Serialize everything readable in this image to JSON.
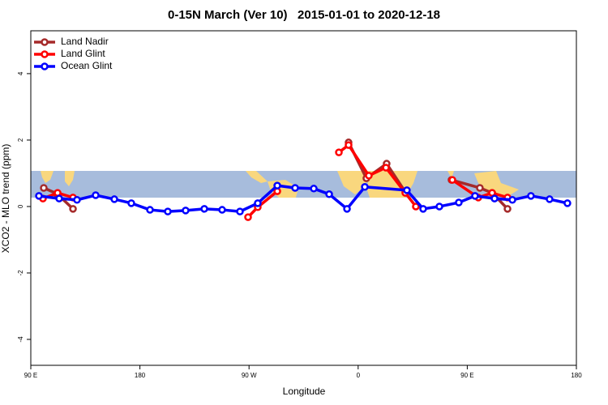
{
  "chart_data": {
    "type": "line",
    "title": "0-15N March (Ver 10)   2015-01-01 to 2020-12-18",
    "x_label": "Longitude",
    "y_label": "XCO2 - MLO trend (ppm)",
    "xlim": [
      90,
      540
    ],
    "xticks": [
      {
        "value": 90,
        "label": "90 E"
      },
      180,
      {
        "value": 270,
        "label": "90 W"
      },
      {
        "value": 360,
        "label": "0"
      },
      {
        "value": 450,
        "label": "90 E"
      },
      180
    ],
    "ylim": [
      -4.78,
      5.29
    ],
    "yticks": [
      -4,
      -2,
      0,
      2,
      4
    ],
    "legend": "top-left",
    "series": [
      {
        "name": "Land Nadir",
        "color": "#a52a2a",
        "x": [
          100.7,
          111.4,
          124.8,
          null,
          352.1,
          366.8,
          383.5,
          398.9,
          null,
          437.0,
          460.4,
          470.5,
          483.2
        ],
        "values": [
          0.56,
          0.39,
          -0.07,
          null,
          1.93,
          0.85,
          1.29,
          0.44,
          null,
          0.8,
          0.56,
          0.41,
          -0.07
        ]
      },
      {
        "name": "Land Glint",
        "color": "#ff0000",
        "x": [
          100.0,
          112.1,
          124.8,
          null,
          269.2,
          277.2,
          293.3,
          null,
          344.1,
          352.1,
          368.8,
          382.9,
          398.9,
          407.6,
          null,
          437.7,
          459.1,
          470.5,
          483.2
        ],
        "values": [
          0.24,
          0.41,
          0.27,
          null,
          -0.32,
          -0.02,
          0.46,
          null,
          1.63,
          1.85,
          0.93,
          1.17,
          0.41,
          0.0,
          null,
          0.8,
          0.27,
          0.41,
          0.27
        ]
      },
      {
        "name": "Ocean Glint",
        "color": "#0000ff",
        "x": [
          96.7,
          113.4,
          128.1,
          143.5,
          158.9,
          172.9,
          188.3,
          203.0,
          217.7,
          233.1,
          247.8,
          262.5,
          277.2,
          293.3,
          308.0,
          323.4,
          336.1,
          350.8,
          365.5,
          400.2,
          413.6,
          427.0,
          443.0,
          456.4,
          472.5,
          487.2,
          502.5,
          517.9,
          532.6
        ],
        "values": [
          0.32,
          0.24,
          0.2,
          0.34,
          0.22,
          0.1,
          -0.1,
          -0.15,
          -0.12,
          -0.07,
          -0.1,
          -0.15,
          0.1,
          0.63,
          0.56,
          0.54,
          0.37,
          -0.07,
          0.59,
          0.49,
          -0.07,
          0.0,
          0.12,
          0.32,
          0.24,
          0.2,
          0.32,
          0.22,
          0.1
        ]
      }
    ]
  }
}
